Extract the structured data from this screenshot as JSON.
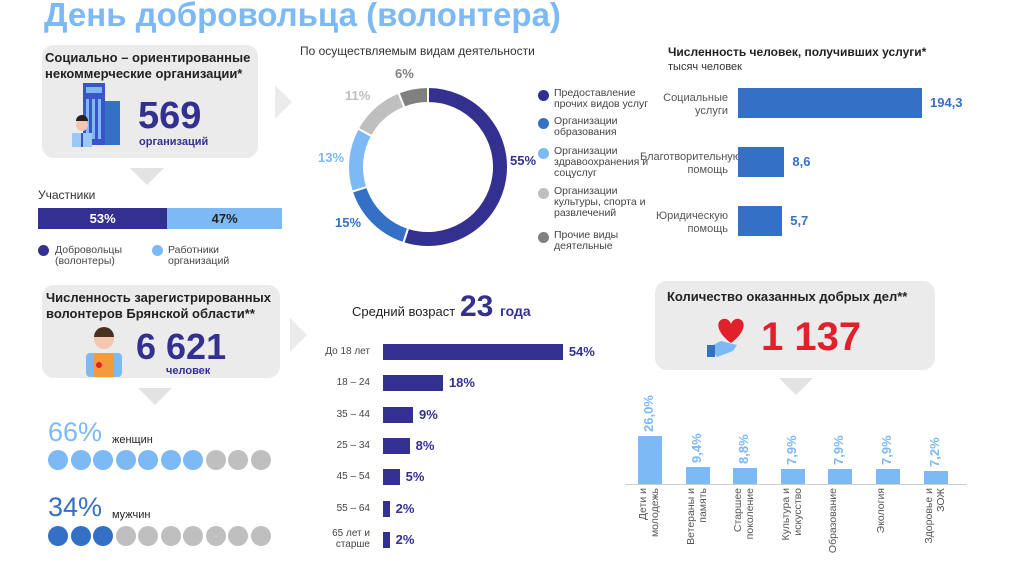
{
  "title": "День добровольца (волонтера)",
  "colors": {
    "dark_blue": "#33308f",
    "mid_blue": "#3470c6",
    "light_blue": "#7cb9f5",
    "light_gray": "#bfbfbf",
    "dark_gray": "#808080",
    "red": "#e0202a"
  },
  "nko": {
    "title": "Социально – ориентированные некоммерческие организации*",
    "value": "569",
    "unit": "организаций",
    "icon": "office-building-person-icon"
  },
  "participants": {
    "label": "Участники",
    "segments": [
      {
        "label": "53%",
        "value": 53,
        "legend": "Добровольцы (волонтеры)"
      },
      {
        "label": "47%",
        "value": 47,
        "legend": "Работники организаций"
      }
    ]
  },
  "volunteers": {
    "title": "Численность зарегистрированных волонтеров Брянской области**",
    "value": "6 621",
    "unit": "человек",
    "icon": "volunteer-person-icon"
  },
  "gender": {
    "women": {
      "pct": "66%",
      "label": "женщин",
      "filled": 7,
      "total": 10
    },
    "men": {
      "pct": "34%",
      "label": "мужчин",
      "filled": 3,
      "total": 10
    }
  },
  "chart_data": [
    {
      "type": "pie",
      "title": "По осуществляемым видам деятельности",
      "donut": true,
      "slices": [
        {
          "label": "55%",
          "value": 55,
          "name": "Предоставление прочих видов услуг",
          "color": "#33308f"
        },
        {
          "label": "15%",
          "value": 15,
          "name": "Организации образования",
          "color": "#3470c6"
        },
        {
          "label": "13%",
          "value": 13,
          "name": "Организации здравоохранения и соцуслуг",
          "color": "#7cb9f5"
        },
        {
          "label": "11%",
          "value": 11,
          "name": "Организации культуры, спорта и развлечений",
          "color": "#bfbfbf"
        },
        {
          "label": "6%",
          "value": 6,
          "name": "Прочие виды деятельные",
          "color": "#808080"
        }
      ],
      "legend": "right"
    },
    {
      "type": "bar",
      "orientation": "horizontal",
      "title": "Численность человек, получивших услуги*",
      "subtitle": "тысяч человек",
      "categories": [
        "Социальные услуги",
        "Благотворительную помощь",
        "Юридическую помощь"
      ],
      "values": [
        194.3,
        8.6,
        5.7
      ],
      "labels": [
        "194,3",
        "8,6",
        "5,7"
      ]
    },
    {
      "type": "bar",
      "orientation": "horizontal",
      "title": "Средний возраст",
      "title_value": "23",
      "title_unit": "года",
      "categories": [
        "До 18 лет",
        "18 – 24",
        "35 – 44",
        "25 – 34",
        "45 – 54",
        "55 – 64",
        "65 лет и старше"
      ],
      "values": [
        54,
        18,
        9,
        8,
        5,
        2,
        2
      ],
      "labels": [
        "54%",
        "18%",
        "9%",
        "8%",
        "5%",
        "2%",
        "2%"
      ]
    },
    {
      "type": "bar",
      "title": "Количество оказанных добрых дел**",
      "title_value": "1 137",
      "categories": [
        "Дети и молодежь",
        "Ветераны и память",
        "Старшее поколение",
        "Культура и искусство",
        "Образование",
        "Экология",
        "Здоровье и ЗОЖ"
      ],
      "values": [
        26.0,
        9.4,
        8.8,
        7.9,
        7.9,
        7.9,
        7.2
      ],
      "labels": [
        "26,0%",
        "9,4%",
        "8,8%",
        "7,9%",
        "7,9%",
        "7,9%",
        "7,2%"
      ]
    }
  ]
}
